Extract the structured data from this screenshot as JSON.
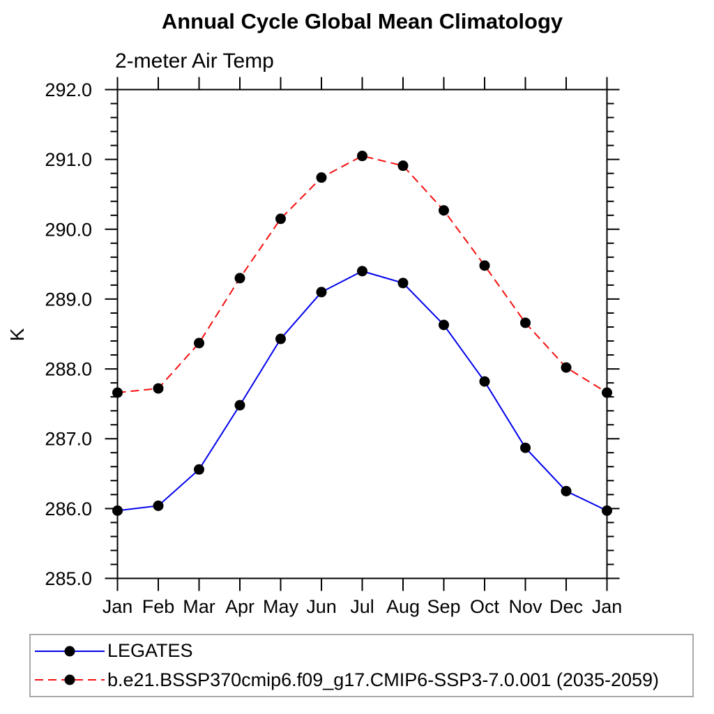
{
  "chart_data": {
    "type": "line",
    "title": "Annual Cycle Global Mean Climatology",
    "subtitle": "2-meter Air Temp",
    "ylabel": "K",
    "x": [
      "Jan",
      "Feb",
      "Mar",
      "Apr",
      "May",
      "Jun",
      "Jul",
      "Aug",
      "Sep",
      "Oct",
      "Nov",
      "Dec",
      "Jan"
    ],
    "ylim": [
      285.0,
      292.0
    ],
    "yticks": [
      285.0,
      286.0,
      287.0,
      288.0,
      289.0,
      290.0,
      291.0,
      292.0
    ],
    "ytick_labels": [
      "285.0",
      "286.0",
      "287.0",
      "288.0",
      "289.0",
      "290.0",
      "291.0",
      "292.0"
    ],
    "yminor_step": 0.2,
    "grid": false,
    "legend_position": "bottom",
    "series": [
      {
        "name": "LEGATES",
        "color": "#0000ee",
        "line_style": "solid",
        "marker": "filled-circle",
        "marker_color": "#000000",
        "values": [
          285.97,
          286.04,
          286.56,
          287.48,
          288.43,
          289.1,
          289.4,
          289.23,
          288.63,
          287.82,
          286.87,
          286.25,
          285.97
        ]
      },
      {
        "name": "b.e21.BSSP370cmip6.f09_g17.CMIP6-SSP3-7.0.001 (2035-2059)",
        "color": "#f50f0f",
        "line_style": "dashed",
        "marker": "filled-circle",
        "marker_color": "#000000",
        "values": [
          287.66,
          287.72,
          288.37,
          289.3,
          290.15,
          290.74,
          291.05,
          290.91,
          290.27,
          289.48,
          288.66,
          288.02,
          287.66
        ]
      }
    ]
  },
  "colors": {
    "axis": "#000000",
    "tick_label": "#000000",
    "legend_border": "#a9a9a9",
    "background": "#ffffff"
  }
}
